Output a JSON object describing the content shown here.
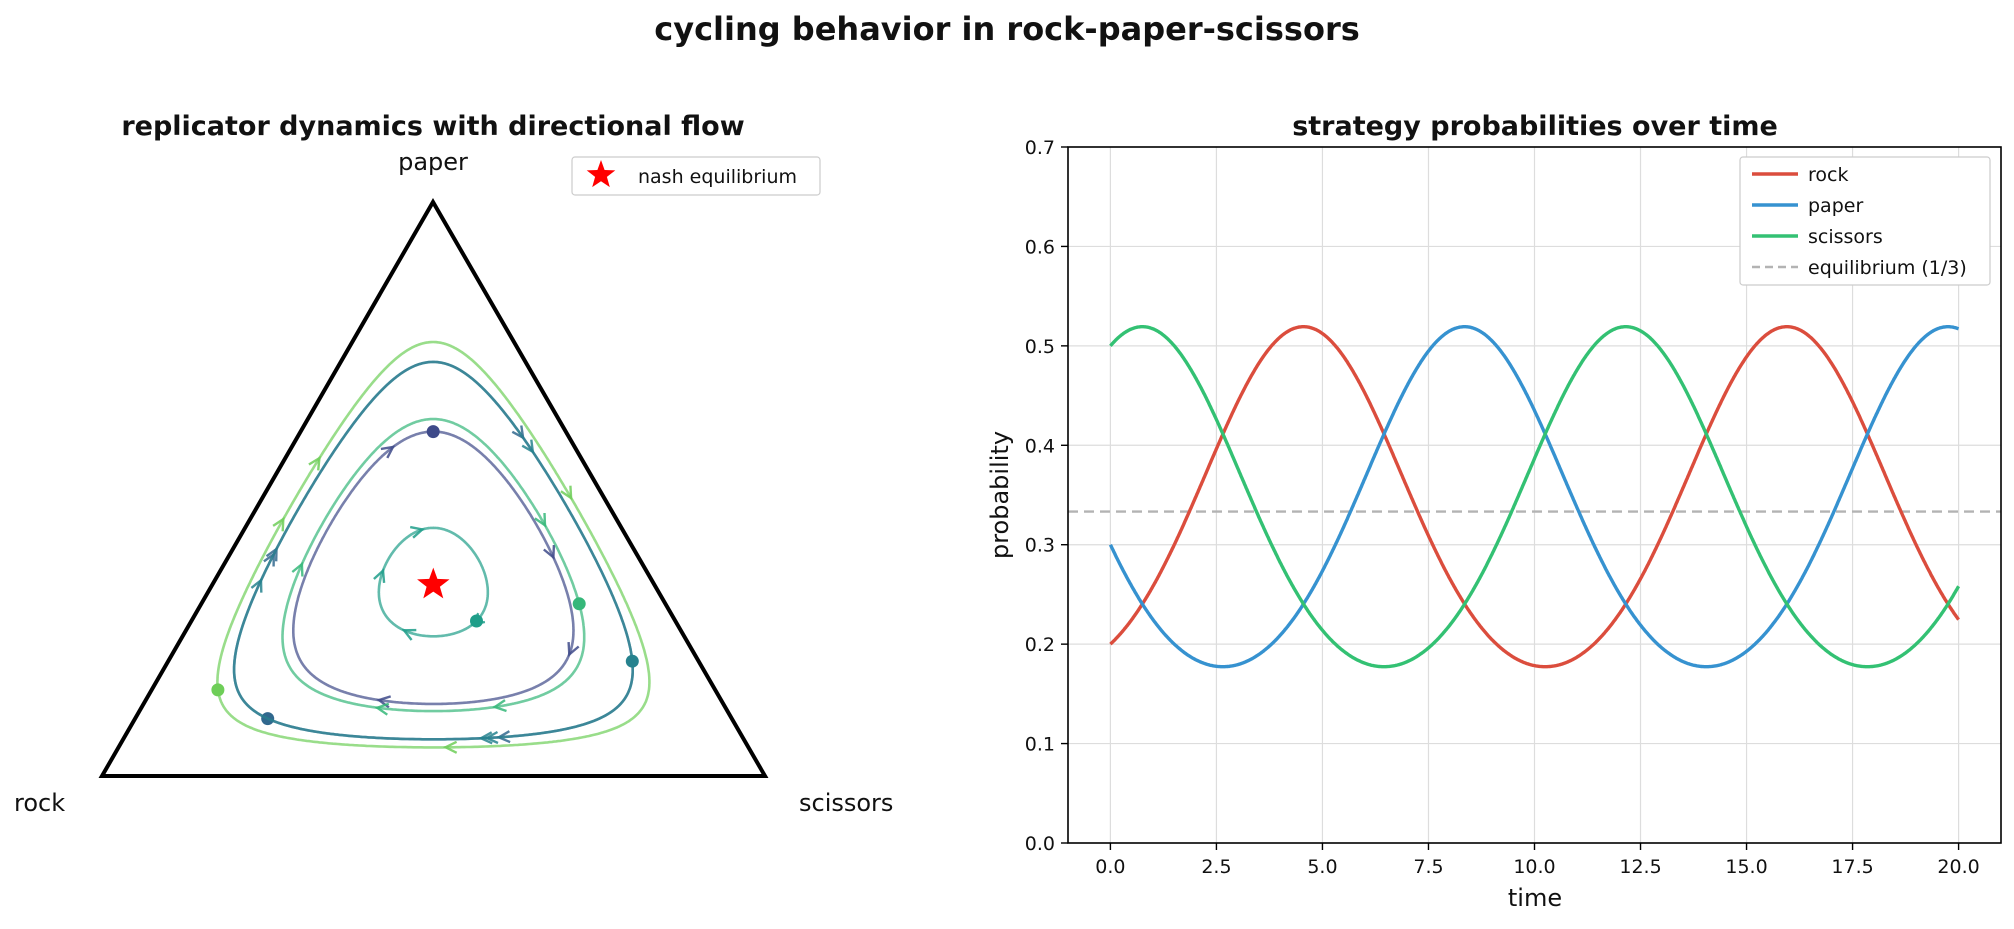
{
  "figure": {
    "title": "cycling behavior in rock-paper-scissors"
  },
  "chart_data": [
    {
      "type": "scatter",
      "title": "replicator dynamics with directional flow",
      "vertex_labels": {
        "top": "paper",
        "left": "rock",
        "right": "scissors"
      },
      "legend": {
        "placement": "top-right",
        "entries": [
          "nash equilibrium"
        ]
      },
      "equilibrium": {
        "rock": 0.3333,
        "paper": 0.3333,
        "scissors": 0.3333,
        "color": "#ff0000"
      },
      "trajectories": [
        {
          "start": {
            "rock": 0.2,
            "paper": 0.6,
            "scissors": 0.2
          },
          "color": "#3e4a89"
        },
        {
          "start": {
            "rock": 0.7,
            "paper": 0.1,
            "scissors": 0.2
          },
          "color": "#31688e"
        },
        {
          "start": {
            "rock": 0.1,
            "paper": 0.2,
            "scissors": 0.7
          },
          "color": "#26828e"
        },
        {
          "start": {
            "rock": 0.3,
            "paper": 0.27,
            "scissors": 0.43
          },
          "color": "#1f9e89"
        },
        {
          "start": {
            "rock": 0.13,
            "paper": 0.3,
            "scissors": 0.57
          },
          "color": "#35b779"
        },
        {
          "start": {
            "rock": 0.75,
            "paper": 0.15,
            "scissors": 0.1
          },
          "color": "#6ece58"
        }
      ],
      "grid": false
    },
    {
      "type": "line",
      "title": "strategy probabilities over time",
      "xlabel": "time",
      "ylabel": "probability",
      "xlim": [
        -1,
        21
      ],
      "ylim": [
        0,
        0.7
      ],
      "xticks": [
        "0.0",
        "2.5",
        "5.0",
        "7.5",
        "10.0",
        "12.5",
        "15.0",
        "17.5",
        "20.0"
      ],
      "yticks": [
        "0.0",
        "0.1",
        "0.2",
        "0.3",
        "0.4",
        "0.5",
        "0.6",
        "0.7"
      ],
      "grid": true,
      "legend": {
        "placement": "top-right"
      },
      "initial": {
        "rock": 0.2,
        "paper": 0.3,
        "scissors": 0.5
      },
      "t_range": [
        0,
        20
      ],
      "series": [
        {
          "name": "rock",
          "color": "#db4d3d",
          "style": "solid"
        },
        {
          "name": "paper",
          "color": "#3692d0",
          "style": "solid"
        },
        {
          "name": "scissors",
          "color": "#33c173",
          "style": "solid"
        },
        {
          "name": "equilibrium (1/3)",
          "color": "#b3b3b3",
          "style": "dashed",
          "value": 0.3333
        }
      ]
    }
  ]
}
